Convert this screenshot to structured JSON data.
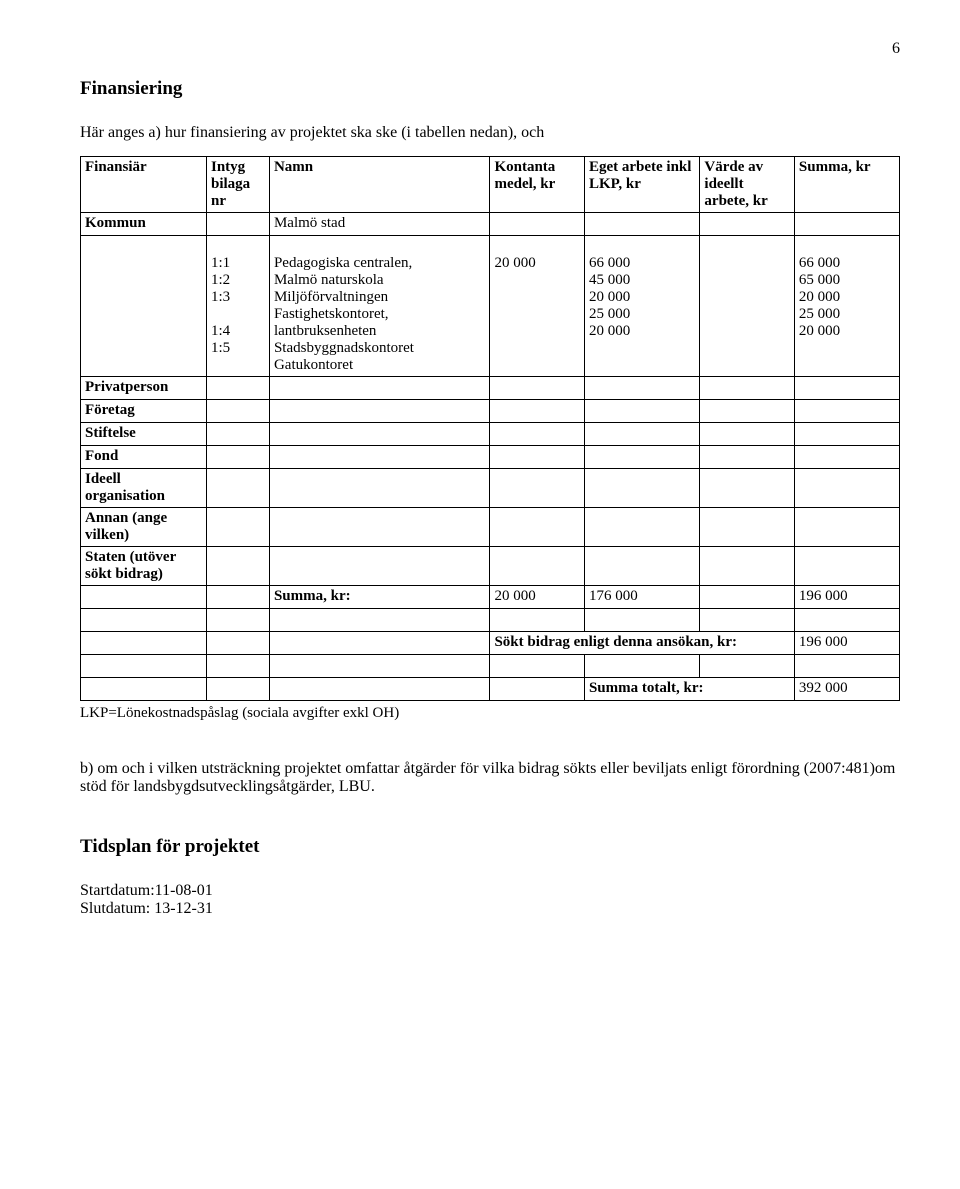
{
  "page_number": "6",
  "section_title": "Finansiering",
  "intro_text": "Här anges a) hur finansiering av projektet ska ske (i tabellen nedan), och",
  "table": {
    "headers": {
      "financier": "Finansiär",
      "intyg": "Intyg bilaga nr",
      "namn": "Namn",
      "kontanta": "Kontanta medel, kr",
      "eget": "Eget arbete inkl LKP, kr",
      "varde": "Värde av ideellt arbete, kr",
      "summa": "Summa, kr"
    },
    "kommun_label": "Kommun",
    "kommun_namn": "Malmö stad",
    "detail_intyg": [
      "1:1",
      "1:2",
      "1:3",
      "1:4",
      "1:5"
    ],
    "detail_namn_lines": [
      "Pedagogiska centralen,",
      "Malmö naturskola",
      "Miljöförvaltningen",
      "Fastighetskontoret,",
      "lantbruksenheten",
      "Stadsbyggnadskontoret",
      "Gatukontoret"
    ],
    "detail_kontanta_lines": [
      "",
      "",
      "20 000",
      "",
      "",
      "",
      ""
    ],
    "detail_eget_lines": [
      "",
      "66 000",
      "45 000",
      "",
      "20 000",
      "25 000",
      "20 000"
    ],
    "detail_summa_lines": [
      "",
      "66 000",
      "65 000",
      "",
      "20 000",
      "25 000",
      "20 000"
    ],
    "row_labels": {
      "privatperson": "Privatperson",
      "foretag": "Företag",
      "stiftelse": "Stiftelse",
      "fond": "Fond",
      "ideell": "Ideell organisation",
      "annan": "Annan (ange vilken)",
      "staten": "Staten (utöver sökt bidrag)"
    },
    "summa_row": {
      "label": "Summa, kr:",
      "kontanta": "20 000",
      "eget": "176 000",
      "varde": "",
      "summa": "196 000"
    },
    "sokt_row": {
      "label": "Sökt bidrag enligt denna ansökan, kr:",
      "value": "196 000"
    },
    "total_row": {
      "label": "Summa totalt, kr:",
      "value": "392 000"
    }
  },
  "lkp_note": "LKP=Lönekostnadspåslag (sociala avgifter exkl OH)",
  "para_b": "b) om och i vilken utsträckning projektet omfattar åtgärder för vilka bidrag sökts eller beviljats enligt förordning (2007:481)om stöd för landsbygdsutvecklingsåtgärder, LBU.",
  "tidsplan_title": "Tidsplan för projektet",
  "start_label": "Startdatum:11-08-01",
  "slut_label": "Slutdatum: 13-12-31"
}
